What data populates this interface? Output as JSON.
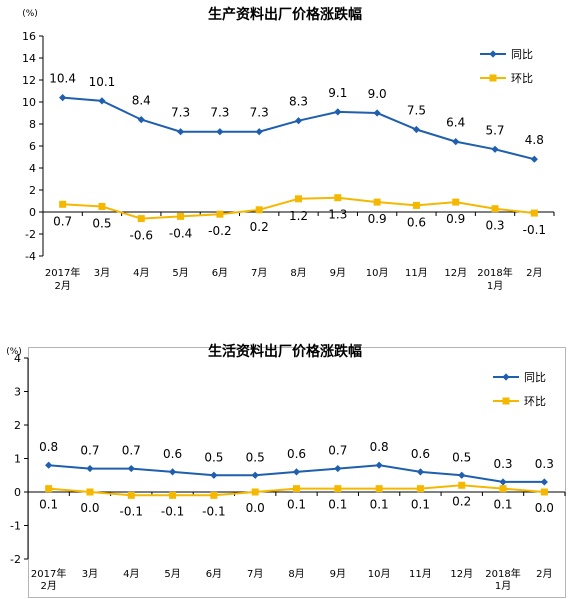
{
  "chart_data": [
    {
      "type": "line",
      "title": "生产资料出厂价格涨跌幅",
      "unit_label": "(%)",
      "categories": [
        [
          "2017年",
          "2月"
        ],
        [
          "3月"
        ],
        [
          "4月"
        ],
        [
          "5月"
        ],
        [
          "6月"
        ],
        [
          "7月"
        ],
        [
          "8月"
        ],
        [
          "9月"
        ],
        [
          "10月"
        ],
        [
          "11月"
        ],
        [
          "12月"
        ],
        [
          "2018年",
          "1月"
        ],
        [
          "2月"
        ]
      ],
      "ylim": [
        -4,
        16
      ],
      "yticks": [
        -4,
        -2,
        0,
        2,
        4,
        6,
        8,
        10,
        12,
        14,
        16
      ],
      "legend_position": "top-right",
      "grid": false,
      "series": [
        {
          "name": "同比",
          "color": "#1F5FAE",
          "marker": "diamond",
          "label_position": "above",
          "values": [
            10.4,
            10.1,
            8.4,
            7.3,
            7.3,
            7.3,
            8.3,
            9.1,
            9.0,
            7.5,
            6.4,
            5.7,
            4.8
          ]
        },
        {
          "name": "环比",
          "color": "#F5B800",
          "marker": "square",
          "label_position": "below",
          "values": [
            0.7,
            0.5,
            -0.6,
            -0.4,
            -0.2,
            0.2,
            1.2,
            1.3,
            0.9,
            0.6,
            0.9,
            0.3,
            -0.1
          ]
        }
      ]
    },
    {
      "type": "line",
      "title": "生活资料出厂价格涨跌幅",
      "unit_label": "(%)",
      "categories": [
        [
          "2017年",
          "2月"
        ],
        [
          "3月"
        ],
        [
          "4月"
        ],
        [
          "5月"
        ],
        [
          "6月"
        ],
        [
          "7月"
        ],
        [
          "8月"
        ],
        [
          "9月"
        ],
        [
          "10月"
        ],
        [
          "11月"
        ],
        [
          "12月"
        ],
        [
          "2018年",
          "1月"
        ],
        [
          "2月"
        ]
      ],
      "ylim": [
        -2,
        4
      ],
      "yticks": [
        -2,
        -1,
        0,
        1,
        2,
        3,
        4
      ],
      "legend_position": "top-right",
      "grid": false,
      "series": [
        {
          "name": "同比",
          "color": "#1F5FAE",
          "marker": "diamond",
          "label_position": "above",
          "values": [
            0.8,
            0.7,
            0.7,
            0.6,
            0.5,
            0.5,
            0.6,
            0.7,
            0.8,
            0.6,
            0.5,
            0.3,
            0.3
          ]
        },
        {
          "name": "环比",
          "color": "#F5B800",
          "marker": "square",
          "label_position": "below",
          "values": [
            0.1,
            0.0,
            -0.1,
            -0.1,
            -0.1,
            0.0,
            0.1,
            0.1,
            0.1,
            0.1,
            0.2,
            0.1,
            0.0
          ]
        }
      ]
    }
  ]
}
